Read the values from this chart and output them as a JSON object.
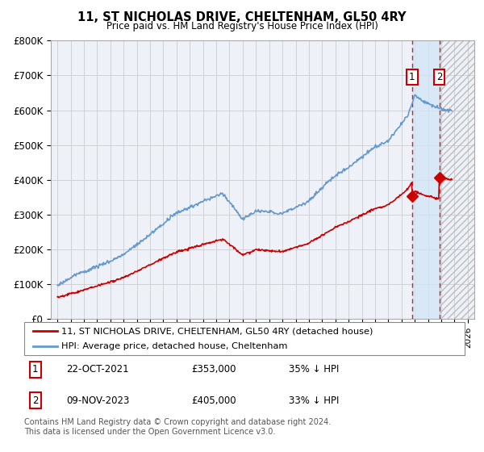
{
  "title": "11, ST NICHOLAS DRIVE, CHELTENHAM, GL50 4RY",
  "subtitle": "Price paid vs. HM Land Registry's House Price Index (HPI)",
  "xlim": [
    1994.5,
    2026.5
  ],
  "ylim": [
    0,
    800000
  ],
  "yticks": [
    0,
    100000,
    200000,
    300000,
    400000,
    500000,
    600000,
    700000,
    800000
  ],
  "ytick_labels": [
    "£0",
    "£100K",
    "£200K",
    "£300K",
    "£400K",
    "£500K",
    "£600K",
    "£700K",
    "£800K"
  ],
  "hpi_color": "#6699cc",
  "price_color": "#cc0000",
  "bg_color": "#eef2f8",
  "grid_color": "#cccccc",
  "transaction1_date": "22-OCT-2021",
  "transaction1_price": 353000,
  "transaction1_pct": "35% ↓ HPI",
  "transaction2_date": "09-NOV-2023",
  "transaction2_price": 405000,
  "transaction2_pct": "33% ↓ HPI",
  "legend_line1": "11, ST NICHOLAS DRIVE, CHELTENHAM, GL50 4RY (detached house)",
  "legend_line2": "HPI: Average price, detached house, Cheltenham",
  "footer": "Contains HM Land Registry data © Crown copyright and database right 2024.\nThis data is licensed under the Open Government Licence v3.0.",
  "t1x": 2021.8,
  "t1y": 353000,
  "t2x": 2023.85,
  "t2y": 405000,
  "shade_color": "#d4e6f7",
  "hatch_color": "#bbbbbb"
}
